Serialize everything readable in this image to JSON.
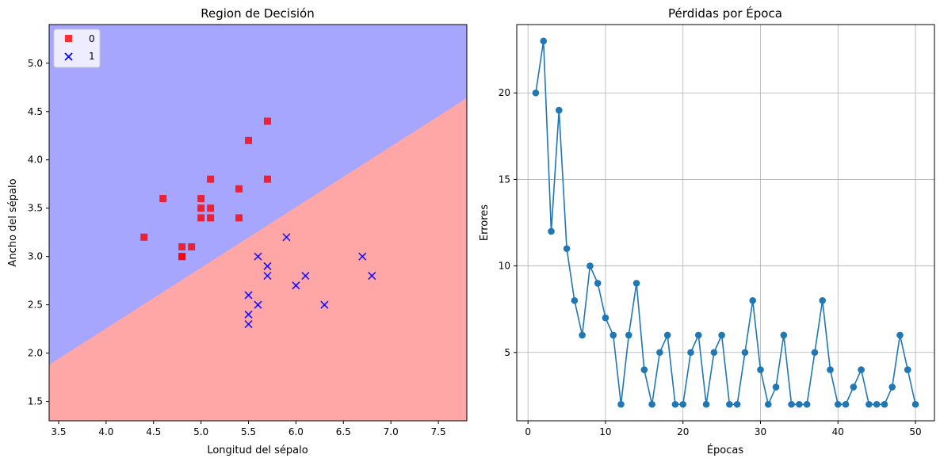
{
  "chart_data": [
    {
      "type": "scatter",
      "title": "Region de Decisión",
      "xlabel": "Longitud del sépalo",
      "ylabel": "Ancho del sépalo",
      "xlim": [
        3.4,
        7.8
      ],
      "ylim": [
        1.3,
        5.4
      ],
      "xticks": [
        "3.5",
        "4.0",
        "4.5",
        "5.0",
        "5.5",
        "6.0",
        "6.5",
        "7.0",
        "7.5"
      ],
      "yticks": [
        "1.5",
        "2.0",
        "2.5",
        "3.0",
        "3.5",
        "4.0",
        "4.5",
        "5.0"
      ],
      "grid": false,
      "legend_position": "upper-left",
      "region_colors": {
        "class_0": "#a6a6ff",
        "class_1": "#ffa6a6"
      },
      "decision_boundary": {
        "x": [
          3.4,
          7.8
        ],
        "y": [
          1.88,
          4.64
        ]
      },
      "series": [
        {
          "name": "0",
          "marker": "square",
          "color": "#ff0000",
          "points": [
            [
              4.4,
              3.2
            ],
            [
              4.6,
              3.6
            ],
            [
              4.8,
              3.1
            ],
            [
              4.8,
              3.0
            ],
            [
              4.8,
              3.0
            ],
            [
              4.9,
              3.1
            ],
            [
              5.0,
              3.6
            ],
            [
              5.0,
              3.5
            ],
            [
              5.0,
              3.4
            ],
            [
              5.1,
              3.8
            ],
            [
              5.1,
              3.5
            ],
            [
              5.1,
              3.4
            ],
            [
              5.4,
              3.7
            ],
            [
              5.4,
              3.4
            ],
            [
              5.5,
              4.2
            ],
            [
              5.7,
              4.4
            ],
            [
              5.7,
              3.8
            ]
          ]
        },
        {
          "name": "1",
          "marker": "x",
          "color": "#0000ff",
          "points": [
            [
              5.5,
              2.6
            ],
            [
              5.5,
              2.4
            ],
            [
              5.5,
              2.3
            ],
            [
              5.6,
              3.0
            ],
            [
              5.6,
              2.5
            ],
            [
              5.7,
              2.9
            ],
            [
              5.7,
              2.8
            ],
            [
              5.9,
              3.2
            ],
            [
              6.0,
              2.7
            ],
            [
              6.1,
              2.8
            ],
            [
              6.3,
              2.5
            ],
            [
              6.7,
              3.0
            ],
            [
              6.8,
              2.8
            ]
          ]
        }
      ]
    },
    {
      "type": "line",
      "title": "Pérdidas por Época",
      "xlabel": "Épocas",
      "ylabel": "Errores",
      "xlim": [
        -1.45,
        52.45
      ],
      "ylim": [
        1.05,
        23.95
      ],
      "xticks": [
        "0",
        "10",
        "20",
        "30",
        "40",
        "50"
      ],
      "yticks": [
        "5",
        "10",
        "15",
        "20"
      ],
      "grid": true,
      "color": "#1f77b4",
      "marker": "circle",
      "x": [
        1,
        2,
        3,
        4,
        5,
        6,
        7,
        8,
        9,
        10,
        11,
        12,
        13,
        14,
        15,
        16,
        17,
        18,
        19,
        20,
        21,
        22,
        23,
        24,
        25,
        26,
        27,
        28,
        29,
        30,
        31,
        32,
        33,
        34,
        35,
        36,
        37,
        38,
        39,
        40,
        41,
        42,
        43,
        44,
        45,
        46,
        47,
        48,
        49,
        50
      ],
      "y": [
        20,
        23,
        12,
        19,
        11,
        8,
        6,
        10,
        9,
        7,
        6,
        2,
        6,
        9,
        4,
        2,
        5,
        6,
        2,
        2,
        5,
        6,
        2,
        5,
        6,
        2,
        2,
        5,
        8,
        4,
        2,
        3,
        6,
        2,
        2,
        2,
        5,
        8,
        4,
        2,
        2,
        3,
        4,
        2,
        2,
        2,
        3,
        6,
        4,
        2
      ]
    }
  ]
}
